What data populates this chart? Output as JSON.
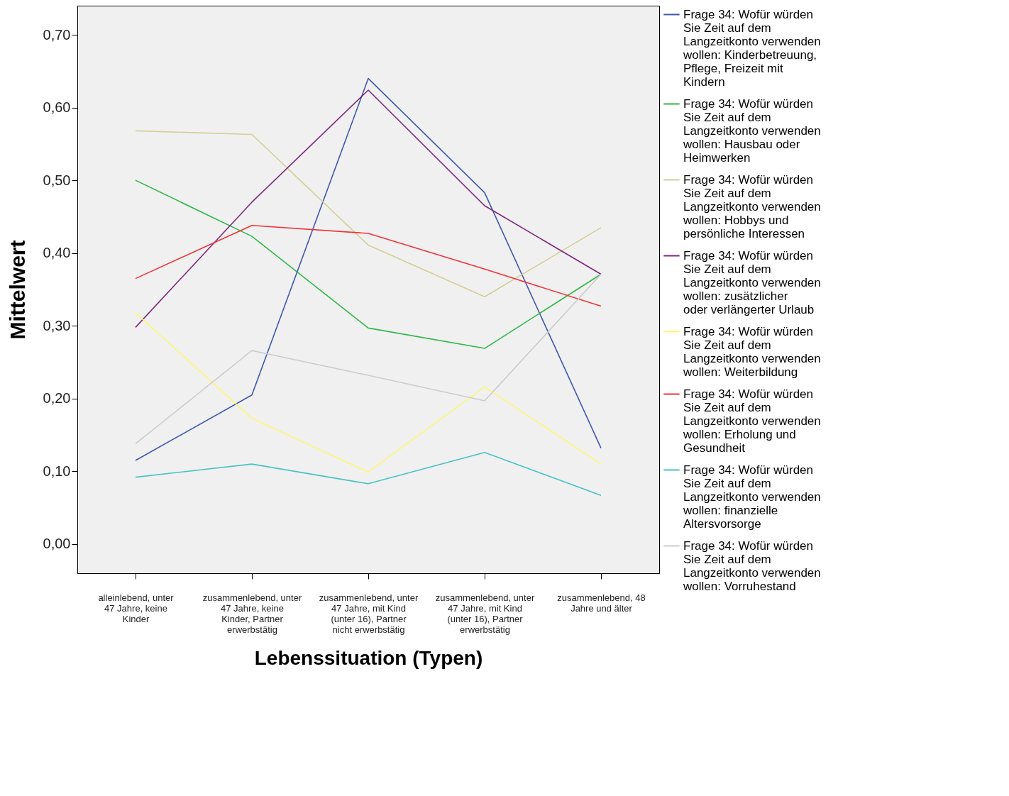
{
  "chart_data": {
    "type": "line",
    "xlabel": "Lebenssituation (Typen)",
    "ylabel": "Mittelwert",
    "categories": [
      "alleinlebend, unter 47 Jahre, keine Kinder",
      "zusammenlebend, unter 47 Jahre, keine Kinder, Partner erwerbstätig",
      "zusammenlebend, unter 47 Jahre, mit Kind (unter 16), Partner nicht erwerbstätig",
      "zusammenlebend, unter 47 Jahre, mit Kind (unter 16), Partner erwerbstätig",
      "zusammenlebend, 48 Jahre und älter"
    ],
    "series": [
      {
        "name": "Frage 34: Wofür würden Sie Zeit auf dem Langzeitkonto verwenden wollen: Kinderbetreuung, Pflege, Freizeit mit Kindern",
        "color": "#3e58ac",
        "values": [
          0.115,
          0.205,
          0.64,
          0.483,
          0.132
        ]
      },
      {
        "name": "Frage 34: Wofür würden Sie Zeit auf dem Langzeitkonto verwenden wollen: Hausbau oder Heimwerken",
        "color": "#2eb848",
        "values": [
          0.5,
          0.423,
          0.297,
          0.269,
          0.371
        ]
      },
      {
        "name": "Frage 34: Wofür würden Sie Zeit auf dem Langzeitkonto verwenden wollen: Hobbys und persönliche Interessen",
        "color": "#d3ce97",
        "values": [
          0.568,
          0.563,
          0.411,
          0.34,
          0.435
        ]
      },
      {
        "name": "Frage 34: Wofür würden Sie Zeit auf dem Langzeitkonto verwenden wollen: zusätzlicher oder verlängerter Urlaub",
        "color": "#7c287d",
        "values": [
          0.298,
          0.47,
          0.624,
          0.465,
          0.371
        ]
      },
      {
        "name": "Frage 34: Wofür würden Sie Zeit auf dem Langzeitkonto verwenden wollen: Weiterbildung",
        "color": "#fbf873",
        "values": [
          0.318,
          0.173,
          0.099,
          0.216,
          0.11
        ]
      },
      {
        "name": "Frage 34: Wofür würden Sie Zeit auf dem Langzeitkonto verwenden wollen: Erholung und Gesundheit",
        "color": "#ef3338",
        "values": [
          0.365,
          0.438,
          0.427,
          0.378,
          0.327
        ]
      },
      {
        "name": "Frage 34: Wofür würden Sie Zeit auf dem Langzeitkonto verwenden wollen: finanzielle Altersvorsorge",
        "color": "#48c2c5",
        "values": [
          0.092,
          0.11,
          0.083,
          0.126,
          0.067
        ]
      },
      {
        "name": "Frage 34: Wofür würden Sie Zeit auf dem Langzeitkonto verwenden wollen: Vorruhestand",
        "color": "#cccccc",
        "values": [
          0.138,
          0.266,
          0.232,
          0.197,
          0.371
        ]
      }
    ],
    "ylim": [
      -0.04,
      0.74
    ],
    "yticks": [
      {
        "value": 0,
        "label": "0,00"
      },
      {
        "value": 0.1,
        "label": "0,10"
      },
      {
        "value": 0.2,
        "label": "0,20"
      },
      {
        "value": 0.3,
        "label": "0,30"
      },
      {
        "value": 0.4,
        "label": "0,40"
      },
      {
        "value": 0.5,
        "label": "0,50"
      },
      {
        "value": 0.6,
        "label": "0,60"
      },
      {
        "value": 0.7,
        "label": "0,70"
      }
    ],
    "grid": false,
    "legend": "right",
    "marker": "none",
    "line_style": "solid"
  }
}
